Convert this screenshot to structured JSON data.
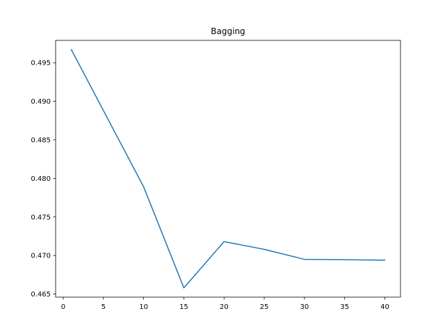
{
  "chart_data": {
    "type": "line",
    "title": "Bagging",
    "xlabel": "",
    "ylabel": "",
    "xlim": [
      -0.95,
      41.95
    ],
    "ylim": [
      0.4646,
      0.4979
    ],
    "xticks": [
      0,
      5,
      10,
      15,
      20,
      25,
      30,
      35,
      40
    ],
    "yticks": [
      0.465,
      0.47,
      0.475,
      0.48,
      0.485,
      0.49,
      0.495
    ],
    "xtick_labels": [
      "0",
      "5",
      "10",
      "15",
      "20",
      "25",
      "30",
      "35",
      "40"
    ],
    "ytick_labels": [
      "0.465",
      "0.470",
      "0.475",
      "0.480",
      "0.485",
      "0.490",
      "0.495"
    ],
    "grid": false,
    "series": [
      {
        "color": "#1f77b4",
        "x": [
          1,
          10,
          15,
          20,
          25,
          30,
          40
        ],
        "y": [
          0.4967,
          0.4789,
          0.4658,
          0.4718,
          0.4708,
          0.4695,
          0.4694
        ]
      }
    ]
  }
}
